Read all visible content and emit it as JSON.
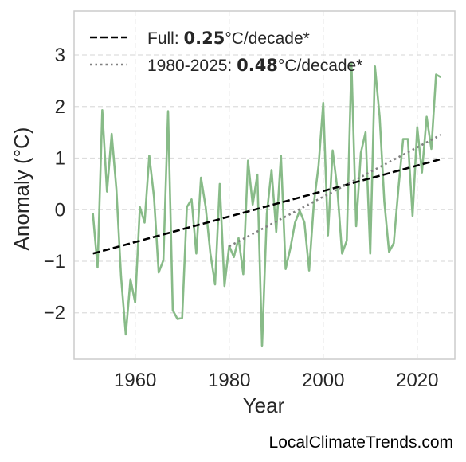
{
  "chart_data": {
    "type": "line",
    "xlabel": "Year",
    "ylabel": "Anomaly (°C)",
    "xlim": [
      1947,
      2028
    ],
    "ylim": [
      -2.9,
      3.85
    ],
    "xticks": [
      1960,
      1980,
      2000,
      2020
    ],
    "yticks": [
      -2,
      -1,
      0,
      1,
      2,
      3
    ],
    "ytick_labels": [
      "−2",
      "−1",
      "0",
      "1",
      "2",
      "3"
    ],
    "grid": true,
    "legend_position": "top-left",
    "series": [
      {
        "style": "line",
        "color": "#88bb88",
        "x": [
          1951,
          1952,
          1953,
          1954,
          1955,
          1956,
          1957,
          1958,
          1959,
          1960,
          1961,
          1962,
          1963,
          1964,
          1965,
          1966,
          1967,
          1968,
          1969,
          1970,
          1971,
          1972,
          1973,
          1974,
          1975,
          1976,
          1977,
          1978,
          1979,
          1980,
          1981,
          1982,
          1983,
          1984,
          1985,
          1986,
          1987,
          1988,
          1989,
          1990,
          1991,
          1992,
          1993,
          1994,
          1995,
          1996,
          1997,
          1998,
          1999,
          2000,
          2001,
          2002,
          2003,
          2004,
          2005,
          2006,
          2007,
          2008,
          2009,
          2010,
          2011,
          2012,
          2013,
          2014,
          2015,
          2016,
          2017,
          2018,
          2019,
          2020,
          2021,
          2022,
          2023,
          2024,
          2025
        ],
        "values": [
          -0.07,
          -1.12,
          1.93,
          0.35,
          1.47,
          0.4,
          -1.3,
          -2.42,
          -1.35,
          -1.8,
          0.05,
          -0.25,
          1.05,
          0.25,
          -1.22,
          -0.98,
          1.91,
          -1.95,
          -2.12,
          -2.1,
          0.05,
          0.2,
          -0.85,
          0.62,
          0.05,
          -0.85,
          -1.45,
          0.5,
          -1.48,
          -0.7,
          -0.92,
          -0.55,
          -1.25,
          0.95,
          0.1,
          0.68,
          -2.65,
          -0.08,
          0.77,
          -0.43,
          1.05,
          -1.15,
          -0.75,
          -0.25,
          -0.02,
          -0.25,
          -1.18,
          0.12,
          0.85,
          2.07,
          -0.5,
          1.15,
          0.4,
          -0.85,
          -0.6,
          2.85,
          -0.32,
          1.1,
          1.5,
          -0.85,
          2.78,
          1.8,
          0.15,
          -0.82,
          -0.65,
          0.42,
          1.37,
          1.37,
          -0.12,
          1.6,
          0.72,
          1.8,
          1.18,
          2.62,
          2.57
        ]
      },
      {
        "name": "Full: 0.25°C/decade*",
        "style": "dashed",
        "color": "#000000",
        "x": [
          1951,
          2025
        ],
        "values": [
          -0.85,
          0.98
        ]
      },
      {
        "name": "1980-2025: 0.48°C/decade*",
        "style": "dotted",
        "color": "#808080",
        "x": [
          1980,
          2025
        ],
        "values": [
          -0.71,
          1.45
        ]
      }
    ]
  },
  "legend": {
    "full_prefix": "Full: ",
    "full_value": "0.25",
    "full_suffix": "°C/decade*",
    "recent_prefix": "1980-2025: ",
    "recent_value": "0.48",
    "recent_suffix": "°C/decade*"
  },
  "watermark": "LocalClimateTrends.com"
}
